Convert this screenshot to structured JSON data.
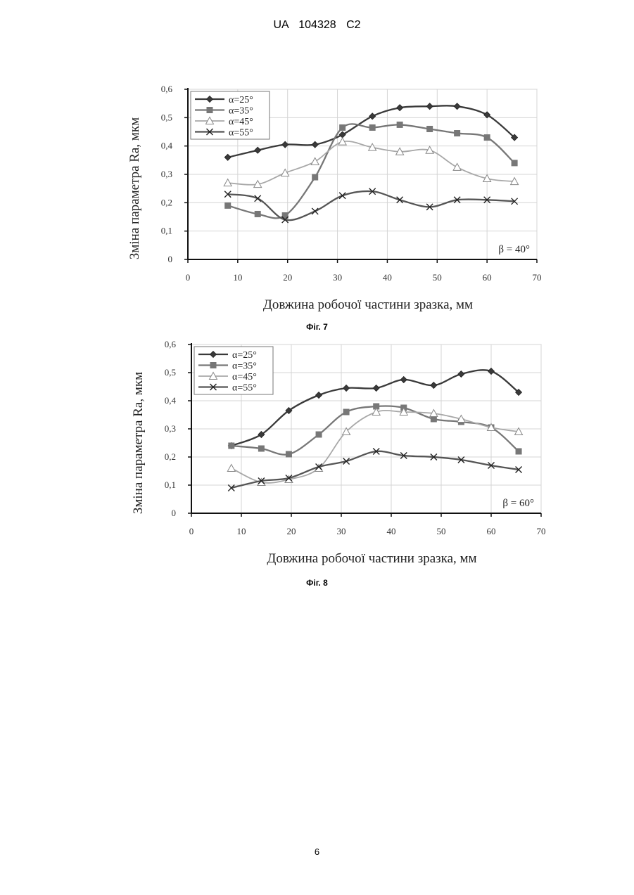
{
  "header": {
    "text": "UA   104328   C2"
  },
  "figures": [
    {
      "caption": "Фіг. 7"
    },
    {
      "caption": "Фіг. 8"
    }
  ],
  "page_number": "6",
  "chart_data": [
    {
      "type": "line",
      "title": "",
      "xlabel": "Довжина робочої частини зразка, мм",
      "ylabel": "Зміна параметра  Ra, мкм",
      "xlim": [
        0,
        70
      ],
      "ylim": [
        0,
        0.6
      ],
      "xticks": [
        "0",
        "10",
        "20",
        "30",
        "40",
        "50",
        "60",
        "70"
      ],
      "yticks": [
        "0",
        "0,1",
        "0,2",
        "0,3",
        "0,4",
        "0,5",
        "0,6"
      ],
      "grid": true,
      "legend_position": "top-left",
      "annotation": "β = 40°",
      "x": [
        8,
        14,
        19.5,
        25.5,
        31,
        37,
        42.5,
        48.5,
        54,
        60,
        65.5
      ],
      "series": [
        {
          "name": "α=25°",
          "marker": "diamond",
          "color": "#3a3a3a",
          "values": [
            0.36,
            0.385,
            0.405,
            0.405,
            0.44,
            0.505,
            0.535,
            0.54,
            0.54,
            0.51,
            0.43
          ]
        },
        {
          "name": "α=35°",
          "marker": "square",
          "color": "#777777",
          "values": [
            0.19,
            0.16,
            0.155,
            0.29,
            0.465,
            0.465,
            0.475,
            0.46,
            0.445,
            0.43,
            0.34
          ]
        },
        {
          "name": "α=45°",
          "marker": "triangle",
          "color": "#a8a8a8",
          "values": [
            0.27,
            0.265,
            0.305,
            0.345,
            0.415,
            0.395,
            0.38,
            0.385,
            0.325,
            0.285,
            0.275
          ]
        },
        {
          "name": "α=55°",
          "marker": "x",
          "color": "#555555",
          "values": [
            0.23,
            0.215,
            0.14,
            0.17,
            0.225,
            0.24,
            0.21,
            0.185,
            0.21,
            0.21,
            0.205
          ]
        }
      ]
    },
    {
      "type": "line",
      "title": "",
      "xlabel": "Довжина робочої частини зразка, мм",
      "ylabel": "Зміна параметра  Ra, мкм",
      "xlim": [
        0,
        70
      ],
      "ylim": [
        0,
        0.6
      ],
      "xticks": [
        "0",
        "10",
        "20",
        "30",
        "40",
        "50",
        "60",
        "70"
      ],
      "yticks": [
        "0",
        "0,1",
        "0,2",
        "0,3",
        "0,4",
        "0,5",
        "0,6"
      ],
      "grid": true,
      "legend_position": "top-left",
      "annotation": "β = 60°",
      "x": [
        8,
        14,
        19.5,
        25.5,
        31,
        37,
        42.5,
        48.5,
        54,
        60,
        65.5
      ],
      "series": [
        {
          "name": "α=25°",
          "marker": "diamond",
          "color": "#3a3a3a",
          "values": [
            0.24,
            0.28,
            0.365,
            0.42,
            0.445,
            0.445,
            0.475,
            0.455,
            0.495,
            0.505,
            0.43
          ]
        },
        {
          "name": "α=35°",
          "marker": "square",
          "color": "#777777",
          "values": [
            0.24,
            0.23,
            0.21,
            0.28,
            0.36,
            0.38,
            0.375,
            0.335,
            0.325,
            0.305,
            0.22
          ]
        },
        {
          "name": "α=45°",
          "marker": "triangle",
          "color": "#a8a8a8",
          "values": [
            0.16,
            0.11,
            0.12,
            0.16,
            0.29,
            0.36,
            0.36,
            0.355,
            0.335,
            0.305,
            0.29
          ]
        },
        {
          "name": "α=55°",
          "marker": "x",
          "color": "#555555",
          "values": [
            0.09,
            0.115,
            0.125,
            0.165,
            0.185,
            0.22,
            0.205,
            0.2,
            0.19,
            0.17,
            0.155
          ]
        }
      ]
    }
  ]
}
